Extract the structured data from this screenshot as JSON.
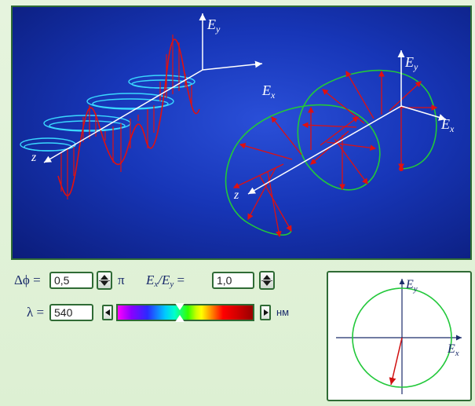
{
  "scene": {
    "labels": {
      "ey1": "E",
      "ey1_sub": "y",
      "ex1": "E",
      "ex1_sub": "x",
      "z1": "z",
      "ey2": "E",
      "ey2_sub": "y",
      "ex2": "E",
      "ex2_sub": "x",
      "z2": "z"
    }
  },
  "controls": {
    "phase_label": "Δϕ =",
    "phase_value": "0,5",
    "phase_unit": "π",
    "ratio_label_e1": "E",
    "ratio_label_x": "x",
    "ratio_label_e2": "/E",
    "ratio_label_y": "y",
    "ratio_label_eq": "=",
    "ratio_value": "1,0",
    "wavelength_label": "λ =",
    "wavelength_value": "540",
    "wavelength_unit": "нм"
  },
  "polar": {
    "ey": "E",
    "ey_sub": "y",
    "ex": "E",
    "ex_sub": "x"
  },
  "colors": {
    "wave": "#e01010",
    "spiral": "#22c83a",
    "ellipse_cyan": "#3ad8ff",
    "frame": "#2f6b35"
  }
}
